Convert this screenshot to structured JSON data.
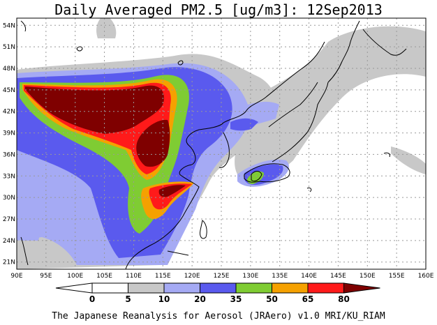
{
  "title": "Daily Averaged PM2.5 [ug/m3]: 12Sep2013",
  "footer": "The Japanese Reanalysis for Aerosol (JRAero) v1.0 MRI/KU_RIAM",
  "map": {
    "lon_range": [
      90,
      160
    ],
    "lat_range": [
      20,
      55
    ],
    "lon_ticks": [
      "90E",
      "95E",
      "100E",
      "105E",
      "110E",
      "115E",
      "120E",
      "125E",
      "130E",
      "135E",
      "140E",
      "145E",
      "150E",
      "155E",
      "160E"
    ],
    "lat_ticks": [
      "21N",
      "24N",
      "27N",
      "30N",
      "33N",
      "36N",
      "39N",
      "42N",
      "45N",
      "48N",
      "51N",
      "54N"
    ]
  },
  "colorbar": {
    "levels": [
      "0",
      "5",
      "10",
      "20",
      "35",
      "50",
      "65",
      "80"
    ],
    "colors": [
      "#ffffff",
      "#c8c8c8",
      "#a5aaf4",
      "#5a5aee",
      "#7fcc33",
      "#f5a100",
      "#ff1a1a",
      "#7f0000"
    ]
  }
}
